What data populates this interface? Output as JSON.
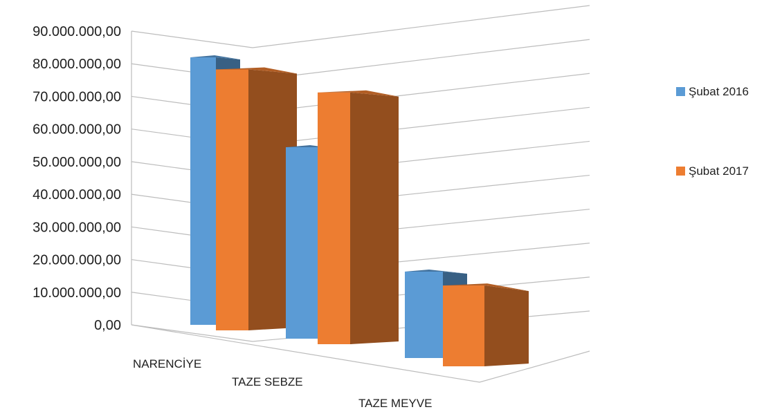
{
  "chart_data": {
    "type": "bar",
    "style": "3d-clustered-column",
    "categories": [
      "NARENCİYE",
      "TAZE SEBZE",
      "TAZE MEYVE"
    ],
    "series": [
      {
        "name": "Şubat 2016",
        "color": "#5b9bd5",
        "values": [
          82000000,
          54000000,
          15500000
        ]
      },
      {
        "name": "Şubat 2017",
        "color": "#ed7d31",
        "values": [
          80000000,
          71000000,
          14500000
        ]
      }
    ],
    "y_ticks": [
      "0,00",
      "10.000.000,00",
      "20.000.000,00",
      "30.000.000,00",
      "40.000.000,00",
      "50.000.000,00",
      "60.000.000,00",
      "70.000.000,00",
      "80.000.000,00",
      "90.000.000,00"
    ],
    "ylim": [
      0,
      90000000
    ],
    "legend_position": "right",
    "grid": true
  }
}
